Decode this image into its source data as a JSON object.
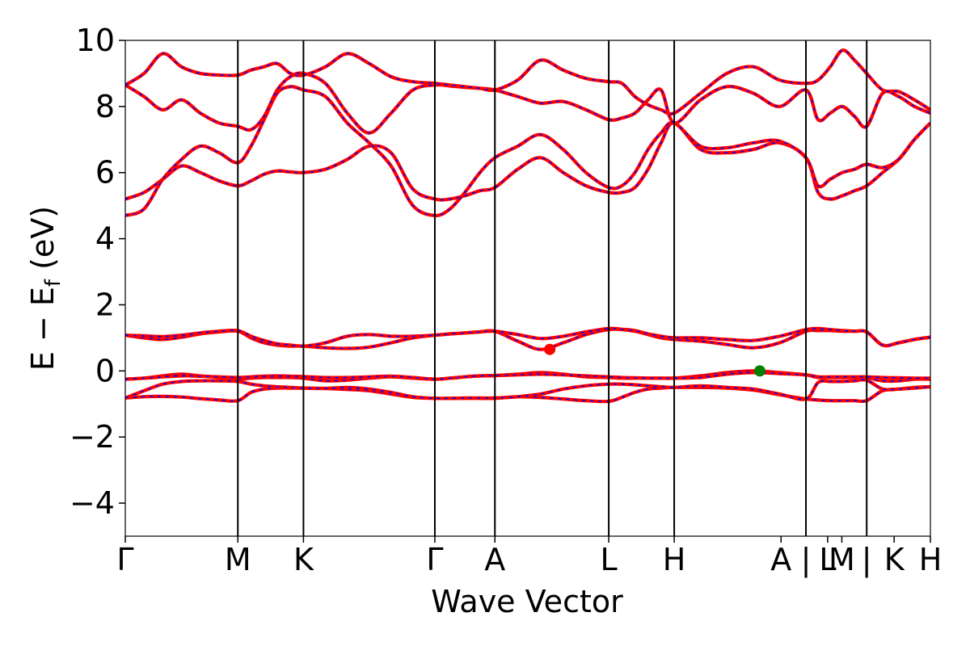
{
  "chart_data": {
    "type": "line",
    "title": "",
    "xlabel": "Wave Vector",
    "ylabel": "E − E",
    "ylabel_sub": "f",
    "ylabel_unit": " (eV)",
    "ylim": [
      -5,
      10
    ],
    "yticks": [
      10,
      8,
      6,
      4,
      2,
      0,
      -2,
      -4
    ],
    "ytick_labels": [
      "10",
      "8",
      "6",
      "4",
      "2",
      "0",
      "−2",
      "−4"
    ],
    "xlim": [
      0,
      1
    ],
    "kpoint_boundaries": [
      0.0,
      0.1398,
      0.2213,
      0.3845,
      0.4591,
      0.6005,
      0.6818,
      0.8454,
      0.9209,
      1.0
    ],
    "kpoint_labels": [
      {
        "x": 0.0,
        "label": "Γ"
      },
      {
        "x": 0.1398,
        "label": "M"
      },
      {
        "x": 0.2213,
        "label": "K"
      },
      {
        "x": 0.3845,
        "label": "Γ"
      },
      {
        "x": 0.4591,
        "label": "A"
      },
      {
        "x": 0.6005,
        "label": "L"
      },
      {
        "x": 0.6818,
        "label": "H"
      },
      {
        "x": 0.8145,
        "label": "A"
      },
      {
        "x": 0.8454,
        "label": "|"
      },
      {
        "x": 0.8724,
        "label": "L"
      },
      {
        "x": 0.89,
        "label": "M"
      },
      {
        "x": 0.9209,
        "label": "|"
      },
      {
        "x": 0.955,
        "label": "K"
      },
      {
        "x": 1.0,
        "label": "H"
      }
    ],
    "series_style": {
      "line_color": "#ff0000",
      "dash_color": "#0000ff"
    },
    "x": [
      0.0,
      0.0233,
      0.0466,
      0.0699,
      0.0932,
      0.1165,
      0.1398,
      0.1561,
      0.1724,
      0.1887,
      0.205,
      0.2213,
      0.2485,
      0.2757,
      0.3029,
      0.3301,
      0.3573,
      0.3845,
      0.4032,
      0.4218,
      0.4405,
      0.4591,
      0.4874,
      0.5157,
      0.5439,
      0.5722,
      0.6005,
      0.6168,
      0.633,
      0.6493,
      0.6655,
      0.6818,
      0.7145,
      0.7472,
      0.78,
      0.8127,
      0.8454,
      0.8605,
      0.8756,
      0.8907,
      0.9058,
      0.9209,
      0.9407,
      0.9605,
      0.9802,
      1.0
    ],
    "series": [
      {
        "values": [
          -0.82,
          -0.78,
          -0.77,
          -0.79,
          -0.84,
          -0.88,
          -0.9,
          -0.65,
          -0.55,
          -0.52,
          -0.52,
          -0.52,
          -0.53,
          -0.56,
          -0.6,
          -0.7,
          -0.8,
          -0.83,
          -0.83,
          -0.83,
          -0.83,
          -0.83,
          -0.78,
          -0.8,
          -0.85,
          -0.9,
          -0.92,
          -0.8,
          -0.65,
          -0.55,
          -0.52,
          -0.5,
          -0.5,
          -0.52,
          -0.58,
          -0.72,
          -0.85,
          -0.88,
          -0.9,
          -0.9,
          -0.9,
          -0.9,
          -0.6,
          -0.55,
          -0.5,
          -0.48
        ]
      },
      {
        "values": [
          -0.82,
          -0.6,
          -0.4,
          -0.32,
          -0.3,
          -0.3,
          -0.32,
          -0.4,
          -0.45,
          -0.48,
          -0.5,
          -0.52,
          -0.53,
          -0.5,
          -0.55,
          -0.65,
          -0.78,
          -0.83,
          -0.83,
          -0.82,
          -0.82,
          -0.82,
          -0.78,
          -0.7,
          -0.55,
          -0.45,
          -0.4,
          -0.4,
          -0.42,
          -0.45,
          -0.48,
          -0.5,
          -0.45,
          -0.5,
          -0.55,
          -0.7,
          -0.85,
          -0.35,
          -0.32,
          -0.32,
          -0.3,
          -0.28,
          -0.55,
          -0.55,
          -0.52,
          -0.48
        ]
      },
      {
        "values": [
          -0.25,
          -0.22,
          -0.15,
          -0.1,
          -0.15,
          -0.2,
          -0.25,
          -0.22,
          -0.2,
          -0.2,
          -0.2,
          -0.22,
          -0.3,
          -0.28,
          -0.22,
          -0.18,
          -0.22,
          -0.25,
          -0.22,
          -0.18,
          -0.15,
          -0.14,
          -0.1,
          -0.05,
          -0.1,
          -0.18,
          -0.2,
          -0.22,
          -0.22,
          -0.22,
          -0.22,
          -0.22,
          -0.15,
          -0.05,
          0.0,
          -0.05,
          -0.12,
          -0.2,
          -0.2,
          -0.2,
          -0.2,
          -0.2,
          -0.3,
          -0.3,
          -0.25,
          -0.25
        ]
      },
      {
        "values": [
          -0.25,
          -0.22,
          -0.18,
          -0.15,
          -0.16,
          -0.18,
          -0.2,
          -0.18,
          -0.16,
          -0.15,
          -0.16,
          -0.17,
          -0.2,
          -0.2,
          -0.18,
          -0.16,
          -0.2,
          -0.25,
          -0.22,
          -0.18,
          -0.15,
          -0.14,
          -0.12,
          -0.1,
          -0.12,
          -0.15,
          -0.18,
          -0.2,
          -0.21,
          -0.22,
          -0.22,
          -0.22,
          -0.2,
          -0.1,
          -0.05,
          -0.08,
          -0.12,
          -0.18,
          -0.18,
          -0.18,
          -0.18,
          -0.18,
          -0.2,
          -0.21,
          -0.22,
          -0.22
        ]
      },
      {
        "values": [
          1.08,
          1.0,
          0.95,
          1.02,
          1.12,
          1.18,
          1.2,
          1.0,
          0.85,
          0.78,
          0.75,
          0.75,
          0.7,
          0.68,
          0.72,
          0.85,
          1.0,
          1.08,
          1.12,
          1.15,
          1.18,
          1.2,
          0.9,
          0.65,
          0.85,
          1.1,
          1.25,
          1.25,
          1.2,
          1.1,
          1.0,
          0.95,
          0.9,
          0.8,
          0.7,
          0.85,
          1.2,
          1.22,
          1.22,
          1.2,
          1.2,
          1.18,
          0.78,
          0.85,
          0.95,
          1.02
        ]
      },
      {
        "values": [
          1.08,
          1.06,
          1.04,
          1.08,
          1.15,
          1.2,
          1.22,
          1.05,
          0.92,
          0.82,
          0.78,
          0.75,
          0.85,
          1.05,
          1.1,
          1.05,
          1.05,
          1.08,
          1.12,
          1.15,
          1.18,
          1.2,
          1.1,
          0.98,
          1.05,
          1.18,
          1.28,
          1.26,
          1.22,
          1.12,
          1.05,
          1.0,
          1.0,
          0.95,
          0.92,
          1.05,
          1.25,
          1.28,
          1.25,
          1.22,
          1.2,
          1.18,
          0.78,
          0.85,
          0.95,
          1.02
        ]
      },
      {
        "values": [
          5.2,
          5.4,
          5.8,
          6.2,
          6.0,
          5.75,
          5.6,
          5.75,
          5.95,
          6.05,
          6.02,
          6.0,
          6.1,
          6.4,
          6.8,
          6.6,
          5.5,
          5.2,
          5.2,
          5.3,
          5.45,
          5.55,
          6.1,
          6.45,
          6.0,
          5.6,
          5.4,
          5.4,
          5.55,
          6.1,
          6.9,
          7.5,
          6.7,
          6.6,
          6.7,
          6.9,
          6.45,
          5.4,
          5.2,
          5.3,
          5.45,
          5.6,
          6.0,
          6.4,
          7.0,
          7.5
        ]
      },
      {
        "values": [
          4.7,
          4.9,
          5.8,
          6.4,
          6.8,
          6.6,
          6.3,
          6.8,
          7.6,
          8.4,
          8.6,
          8.5,
          8.3,
          7.5,
          6.9,
          6.2,
          5.0,
          4.7,
          4.9,
          5.4,
          6.0,
          6.45,
          6.8,
          7.15,
          6.7,
          6.0,
          5.55,
          5.6,
          6.0,
          6.7,
          7.2,
          7.5,
          6.8,
          6.75,
          6.9,
          6.95,
          6.45,
          5.6,
          5.8,
          6.0,
          6.1,
          6.25,
          6.15,
          6.4,
          7.0,
          7.5
        ]
      },
      {
        "values": [
          8.65,
          8.3,
          7.9,
          8.2,
          7.8,
          7.5,
          7.4,
          7.3,
          7.7,
          8.5,
          8.9,
          9.0,
          8.7,
          7.8,
          7.2,
          7.8,
          8.5,
          8.65,
          8.62,
          8.58,
          8.55,
          8.5,
          8.3,
          8.1,
          8.15,
          7.9,
          7.6,
          7.65,
          7.8,
          8.2,
          8.5,
          7.5,
          8.2,
          8.6,
          8.4,
          8.0,
          8.5,
          7.6,
          7.8,
          8.0,
          7.7,
          7.4,
          8.4,
          8.3,
          8.0,
          7.8
        ]
      },
      {
        "values": [
          8.65,
          9.0,
          9.6,
          9.2,
          9.0,
          8.95,
          8.95,
          9.1,
          9.2,
          9.3,
          9.0,
          8.95,
          9.2,
          9.6,
          9.3,
          8.9,
          8.75,
          8.7,
          8.65,
          8.6,
          8.55,
          8.5,
          8.8,
          9.4,
          9.1,
          8.85,
          8.75,
          8.7,
          8.3,
          8.05,
          7.9,
          7.8,
          8.4,
          9.0,
          9.2,
          8.8,
          8.7,
          8.8,
          9.2,
          9.7,
          9.4,
          9.0,
          8.5,
          8.45,
          8.2,
          7.9
        ]
      }
    ],
    "markers": [
      {
        "name": "conduction band minimum",
        "x": 0.5272,
        "y": 0.65,
        "color": "#ff0000"
      },
      {
        "name": "valence band maximum",
        "x": 0.7881,
        "y": 0.0,
        "color": "#008000"
      }
    ],
    "grid": false,
    "legend": "none"
  }
}
